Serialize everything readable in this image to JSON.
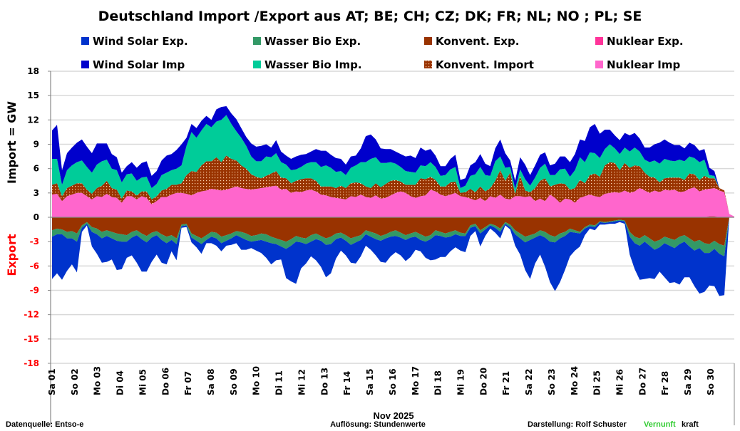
{
  "chart_data": {
    "type": "area",
    "title": "Deutschland  Import /Export  aus AT;  BE;  CH;  CZ;  DK;  FR;  NL;  NO ;  PL;  SE",
    "ylabel_import": "Import   = GW",
    "ylabel_export": "Export",
    "xlabel": "Nov 2025",
    "ylim": [
      -18,
      18
    ],
    "yticks": [
      18,
      15,
      12,
      9,
      6,
      3,
      0,
      -3,
      -6,
      -9,
      -12,
      -15,
      -18
    ],
    "grid": true,
    "legend_position": "top",
    "categories": [
      "Sa 01",
      "So 02",
      "Mo 03",
      "Di 04",
      "Mi 05",
      "Do 06",
      "Fr 07",
      "Sa 08",
      "So 09",
      "Mo 10",
      "Di 11",
      "Mi 12",
      "Do 13",
      "Fr 14",
      "Sa 15",
      "So 16",
      "Mo 17",
      "Di 18",
      "Mi 19",
      "Do 20",
      "Fr 21",
      "Sa 22",
      "So 23",
      "Mo 24",
      "Di 25",
      "Mi 26",
      "Do 27",
      "Fr 28",
      "Sa 29",
      "So 30"
    ],
    "resolution_note": "values sampled every 6 hours (4 per day), GW, stacked layers as thickness",
    "import_series": [
      {
        "name": "Nuklear Imp",
        "color": "#ff66cc",
        "values": [
          2.8,
          2.9,
          2.0,
          2.6,
          2.8,
          3.0,
          3.0,
          2.6,
          2.2,
          2.6,
          2.5,
          2.9,
          2.5,
          2.4,
          1.8,
          2.6,
          2.6,
          2.2,
          2.6,
          2.4,
          1.6,
          2.0,
          2.5,
          2.5,
          2.8,
          3.0,
          3.0,
          2.9,
          2.7,
          3.0,
          3.2,
          3.3,
          3.5,
          3.4,
          3.3,
          3.4,
          3.6,
          3.8,
          3.6,
          3.5,
          3.4,
          3.5,
          3.6,
          3.7,
          3.8,
          3.9,
          3.4,
          3.5,
          3.0,
          3.2,
          3.1,
          3.3,
          3.4,
          3.2,
          2.8,
          2.7,
          2.5,
          2.4,
          2.3,
          2.2,
          2.6,
          2.5,
          2.8,
          2.5,
          2.4,
          2.7,
          2.3,
          2.4,
          2.7,
          3.0,
          3.2,
          3.0,
          2.6,
          2.4,
          2.6,
          2.7,
          3.4,
          3.2,
          2.8,
          2.6,
          2.8,
          3.0,
          2.6,
          2.5,
          2.3,
          2.1,
          2.4,
          2.0,
          2.6,
          2.4,
          2.8,
          2.3,
          2.2,
          2.6,
          2.6,
          2.5,
          2.6,
          2.0,
          2.3,
          2.0,
          2.8,
          2.4,
          1.8,
          2.3,
          2.2,
          1.8,
          2.4,
          2.6,
          2.8,
          2.6,
          2.5,
          2.9,
          3.0,
          3.1,
          3.0,
          3.3,
          3.0,
          3.2,
          3.6,
          3.3,
          3.0,
          3.3,
          3.1,
          3.4,
          3.3,
          3.4,
          3.1,
          3.2,
          3.5,
          3.7,
          3.2,
          3.4,
          3.5,
          3.6,
          3.3,
          3.1,
          0.4,
          0.1
        ]
      },
      {
        "name": "Konvent. Import",
        "color": "#993300",
        "pattern": "dotted",
        "values": [
          1.2,
          1.3,
          0.6,
          1.0,
          1.1,
          1.2,
          1.2,
          0.8,
          0.7,
          1.0,
          1.4,
          1.6,
          1.1,
          1.0,
          0.5,
          0.7,
          0.6,
          0.5,
          0.6,
          0.8,
          0.6,
          0.6,
          0.8,
          1.0,
          1.2,
          1.0,
          1.2,
          2.3,
          3.0,
          2.6,
          3.2,
          3.6,
          3.4,
          4.0,
          3.5,
          4.2,
          3.6,
          3.2,
          2.8,
          2.5,
          1.9,
          1.5,
          1.2,
          1.4,
          1.6,
          1.8,
          1.5,
          1.3,
          1.2,
          1.3,
          1.6,
          1.5,
          1.4,
          1.3,
          1.0,
          1.1,
          1.3,
          1.2,
          1.6,
          1.4,
          1.6,
          1.8,
          1.4,
          1.3,
          1.2,
          1.5,
          1.4,
          1.7,
          1.8,
          1.6,
          1.2,
          1.0,
          1.4,
          1.6,
          2.2,
          2.0,
          1.6,
          1.4,
          1.0,
          1.2,
          1.5,
          1.4,
          0.4,
          0.6,
          1.2,
          1.0,
          1.4,
          1.2,
          1.0,
          2.1,
          3.0,
          2.2,
          3.3,
          0.3,
          2.5,
          0.8,
          0.5,
          1.6,
          2.2,
          2.8,
          1.0,
          1.6,
          2.4,
          1.8,
          1.2,
          1.8,
          2.2,
          1.6,
          2.4,
          2.8,
          2.5,
          3.5,
          3.8,
          3.6,
          2.8,
          3.4,
          3.1,
          3.2,
          2.7,
          2.2,
          2.0,
          1.6,
          1.2,
          1.4,
          1.6,
          1.5,
          1.8,
          1.4,
          1.9,
          1.6,
          1.4,
          1.7,
          1.3,
          1.2,
          0.3,
          0.2
        ]
      },
      {
        "name": "Wasser Bio Imp.",
        "color": "#00cc99",
        "values": [
          3.2,
          3.0,
          1.4,
          2.2,
          2.5,
          2.6,
          2.8,
          2.8,
          2.6,
          2.9,
          3.0,
          2.6,
          2.4,
          2.4,
          2.0,
          2.0,
          2.2,
          1.8,
          1.7,
          1.8,
          1.4,
          1.5,
          1.9,
          2.0,
          1.8,
          2.0,
          2.2,
          3.6,
          4.8,
          4.2,
          4.3,
          4.6,
          4.2,
          4.4,
          5.2,
          5.0,
          4.3,
          3.6,
          3.4,
          2.8,
          2.2,
          1.9,
          2.1,
          2.4,
          2.0,
          2.2,
          1.9,
          1.7,
          1.6,
          1.4,
          1.5,
          1.8,
          2.0,
          2.3,
          2.4,
          2.6,
          2.3,
          2.0,
          1.8,
          1.6,
          1.9,
          2.1,
          2.6,
          3.0,
          3.6,
          3.2,
          3.0,
          2.6,
          2.3,
          2.0,
          1.8,
          1.7,
          1.6,
          1.5,
          1.6,
          1.6,
          1.8,
          1.6,
          1.3,
          1.4,
          1.6,
          1.8,
          0.6,
          0.8,
          1.6,
          2.2,
          2.4,
          2.0,
          1.5,
          2.4,
          1.7,
          1.6,
          0.7,
          0.6,
          0.8,
          1.4,
          0.8,
          1.3,
          1.6,
          1.8,
          1.4,
          1.2,
          1.7,
          1.9,
          1.6,
          2.2,
          2.8,
          2.6,
          2.8,
          2.5,
          2.3,
          2.0,
          2.2,
          1.8,
          2.0,
          1.9,
          2.0,
          2.2,
          1.8,
          1.6,
          1.8,
          2.1,
          2.3,
          2.4,
          2.1,
          2.0,
          2.2,
          2.3,
          2.1,
          2.0,
          2.2,
          2.0,
          0.4,
          0.3
        ]
      },
      {
        "name": "Wind Solar Imp",
        "color": "#0000cc",
        "values": [
          3.5,
          4.2,
          1.8,
          2.1,
          2.2,
          2.4,
          2.6,
          2.5,
          2.4,
          2.6,
          2.2,
          2.0,
          1.8,
          1.6,
          1.2,
          1.0,
          1.4,
          1.6,
          1.8,
          1.9,
          1.5,
          1.6,
          1.8,
          2.1,
          2.0,
          2.3,
          2.6,
          1.0,
          1.0,
          1.2,
          1.2,
          1.0,
          0.9,
          1.5,
          1.6,
          1.1,
          1.3,
          1.5,
          1.2,
          1.1,
          1.6,
          1.8,
          1.9,
          1.5,
          1.2,
          1.6,
          1.3,
          1.1,
          1.4,
          1.6,
          1.5,
          1.2,
          1.3,
          1.6,
          2.0,
          1.8,
          1.6,
          1.7,
          1.5,
          1.3,
          1.4,
          1.2,
          1.7,
          3.2,
          3.0,
          2.2,
          1.8,
          1.7,
          1.6,
          1.5,
          1.6,
          1.8,
          2.0,
          1.8,
          2.2,
          1.9,
          1.6,
          1.4,
          1.2,
          1.1,
          1.3,
          1.5,
          1.0,
          0.9,
          1.3,
          1.5,
          1.6,
          1.4,
          1.2,
          1.6,
          2.1,
          1.8,
          0.8,
          1.0,
          1.5,
          1.8,
          1.3,
          1.5,
          1.6,
          1.4,
          1.2,
          1.4,
          1.6,
          1.5,
          1.8,
          2.0,
          2.2,
          2.6,
          3.1,
          3.6,
          3.0,
          2.4,
          1.8,
          1.6,
          1.7,
          1.8,
          2.0,
          1.8,
          1.6,
          1.5,
          1.8,
          2.0,
          2.6,
          2.4,
          2.2,
          2.0,
          1.8,
          1.6,
          1.7,
          1.6,
          1.4,
          1.3,
          0.9,
          0.6
        ]
      }
    ],
    "export_series": [
      {
        "name": "Nuklear Exp.",
        "color": "#ff3399",
        "values": [
          0,
          0,
          0,
          0,
          0,
          0,
          0,
          0,
          0,
          0,
          0,
          0,
          0,
          0,
          0,
          0,
          0,
          0,
          0,
          0,
          0,
          0,
          0,
          0,
          0,
          0,
          0,
          0,
          0,
          0,
          0,
          0,
          0,
          0,
          0,
          0,
          0,
          0,
          0,
          0,
          0,
          0,
          0,
          0,
          0,
          0,
          0,
          0,
          0,
          0,
          0,
          0,
          0,
          0,
          0,
          0,
          0,
          0,
          0,
          0,
          0,
          0,
          0,
          0,
          0,
          0,
          0,
          0,
          0,
          0,
          0,
          0,
          0,
          0,
          0,
          0,
          0,
          0,
          0,
          0,
          0,
          0,
          0,
          0,
          0,
          0,
          0,
          0,
          0,
          0,
          0,
          0,
          0,
          0,
          0,
          0,
          0,
          0,
          0,
          0,
          0,
          0,
          0,
          0,
          0,
          0,
          0,
          0,
          0,
          0,
          0,
          0,
          0,
          0,
          0,
          0,
          0,
          0,
          0,
          0,
          0,
          0,
          0,
          0,
          0,
          0,
          0,
          0,
          0,
          0,
          0,
          0,
          0.1,
          0.1
        ]
      },
      {
        "name": "Konvent. Exp.",
        "color": "#993300",
        "values": [
          -1.6,
          -1.4,
          -1.5,
          -1.8,
          -1.7,
          -2.0,
          -1.0,
          -0.6,
          -1.2,
          -1.4,
          -1.8,
          -1.6,
          -1.8,
          -2.0,
          -2.1,
          -2.2,
          -1.8,
          -1.6,
          -2.0,
          -2.3,
          -1.9,
          -1.7,
          -2.1,
          -2.4,
          -2.2,
          -2.6,
          -0.9,
          -0.8,
          -2.0,
          -2.3,
          -2.6,
          -2.2,
          -1.8,
          -1.9,
          -2.4,
          -2.2,
          -2.0,
          -1.7,
          -1.8,
          -2.0,
          -2.3,
          -2.2,
          -2.0,
          -2.1,
          -2.4,
          -2.6,
          -2.8,
          -3.0,
          -2.7,
          -2.3,
          -2.5,
          -2.6,
          -2.2,
          -2.0,
          -2.3,
          -2.6,
          -2.4,
          -2.0,
          -1.9,
          -2.2,
          -2.6,
          -2.4,
          -2.2,
          -1.6,
          -1.8,
          -2.0,
          -2.3,
          -2.1,
          -1.8,
          -1.6,
          -1.9,
          -2.2,
          -2.0,
          -1.8,
          -2.1,
          -2.4,
          -2.2,
          -1.6,
          -1.8,
          -2.0,
          -1.8,
          -1.6,
          -1.9,
          -2.0,
          -1.0,
          -0.8,
          -1.6,
          -1.2,
          -0.8,
          -1.0,
          -1.4,
          -0.6,
          -0.9,
          -1.6,
          -2.0,
          -2.4,
          -2.2,
          -2.0,
          -1.6,
          -1.8,
          -2.2,
          -2.4,
          -2.0,
          -1.8,
          -1.4,
          -1.6,
          -1.8,
          -1.2,
          -0.9,
          -1.0,
          -0.5,
          -0.6,
          -0.5,
          -0.4,
          -0.3,
          -0.4,
          -1.8,
          -2.4,
          -2.6,
          -2.2,
          -2.6,
          -3.0,
          -2.8,
          -2.4,
          -2.6,
          -2.8,
          -2.4,
          -2.2,
          -2.6,
          -3.0,
          -2.8,
          -3.2,
          -3.4,
          -3.0,
          -3.3,
          -3.5
        ]
      },
      {
        "name": "Wasser Bio Exp.",
        "color": "#339966",
        "values": [
          -0.8,
          -0.7,
          -0.6,
          -0.8,
          -0.9,
          -1.0,
          -0.3,
          -0.2,
          -0.6,
          -0.7,
          -0.8,
          -0.7,
          -0.8,
          -0.9,
          -0.9,
          -0.8,
          -0.7,
          -0.6,
          -0.7,
          -0.8,
          -0.6,
          -0.5,
          -0.7,
          -0.8,
          -0.6,
          -0.7,
          -0.2,
          -0.2,
          -0.5,
          -0.6,
          -0.7,
          -0.6,
          -0.6,
          -0.7,
          -0.8,
          -0.7,
          -0.6,
          -0.5,
          -0.7,
          -0.8,
          -0.7,
          -0.7,
          -0.8,
          -0.9,
          -0.8,
          -0.7,
          -0.8,
          -0.9,
          -0.8,
          -0.7,
          -0.6,
          -0.7,
          -0.8,
          -0.7,
          -0.6,
          -0.8,
          -0.9,
          -0.7,
          -0.6,
          -0.7,
          -0.8,
          -0.7,
          -0.6,
          -0.5,
          -0.6,
          -0.7,
          -0.6,
          -0.5,
          -0.6,
          -0.7,
          -0.6,
          -0.6,
          -0.5,
          -0.6,
          -0.7,
          -0.6,
          -0.5,
          -0.6,
          -0.5,
          -0.5,
          -0.6,
          -0.5,
          -0.4,
          -0.3,
          -0.3,
          -0.3,
          -0.4,
          -0.3,
          -0.2,
          -0.3,
          -0.4,
          -0.2,
          -0.3,
          -0.5,
          -0.6,
          -0.7,
          -0.6,
          -0.5,
          -0.6,
          -0.7,
          -0.8,
          -0.7,
          -0.6,
          -0.5,
          -0.4,
          -0.3,
          -0.2,
          -0.2,
          -0.2,
          -0.2,
          -0.1,
          -0.1,
          -0.1,
          -0.1,
          -0.1,
          -0.1,
          -0.6,
          -0.8,
          -0.9,
          -0.8,
          -0.9,
          -1.0,
          -0.9,
          -0.8,
          -0.9,
          -1.0,
          -0.9,
          -0.8,
          -1.0,
          -1.1,
          -1.0,
          -1.2,
          -1.1,
          -1.0,
          -1.2,
          -1.3
        ]
      },
      {
        "name": "Wind Solar Exp.",
        "color": "#0033cc",
        "values": [
          -5.2,
          -4.8,
          -5.6,
          -4.0,
          -3.2,
          -3.8,
          -0.5,
          -0.2,
          -1.8,
          -2.4,
          -3.0,
          -3.2,
          -2.6,
          -3.6,
          -3.4,
          -2.0,
          -2.2,
          -3.4,
          -4.0,
          -3.6,
          -3.0,
          -2.4,
          -2.8,
          -2.6,
          -1.4,
          -2.0,
          -0.2,
          -0.2,
          -0.6,
          -0.8,
          -1.2,
          -0.4,
          -0.8,
          -0.9,
          -1.0,
          -0.6,
          -0.8,
          -1.0,
          -1.5,
          -1.2,
          -0.8,
          -1.2,
          -1.6,
          -2.0,
          -2.6,
          -2.0,
          -1.6,
          -3.6,
          -4.4,
          -5.2,
          -3.2,
          -2.4,
          -1.8,
          -2.6,
          -3.2,
          -4.0,
          -3.6,
          -2.4,
          -1.6,
          -1.8,
          -2.2,
          -2.6,
          -2.0,
          -1.4,
          -1.6,
          -2.0,
          -2.6,
          -3.0,
          -2.4,
          -2.0,
          -2.2,
          -2.6,
          -2.4,
          -1.6,
          -1.4,
          -2.0,
          -2.6,
          -3.0,
          -2.6,
          -2.4,
          -1.8,
          -1.6,
          -1.8,
          -2.0,
          -1.0,
          -0.6,
          -1.6,
          -0.8,
          -0.4,
          -0.6,
          -0.8,
          -0.2,
          -0.3,
          -1.4,
          -2.0,
          -3.4,
          -4.8,
          -3.2,
          -2.4,
          -3.6,
          -5.0,
          -6.0,
          -5.4,
          -4.2,
          -3.0,
          -2.2,
          -1.6,
          -0.8,
          -0.3,
          -0.4,
          -0.3,
          -0.2,
          -0.2,
          -0.3,
          -0.2,
          -0.3,
          -2.2,
          -3.2,
          -4.2,
          -4.6,
          -4.0,
          -3.6,
          -3.0,
          -4.2,
          -4.6,
          -4.2,
          -5.0,
          -4.4,
          -3.8,
          -4.4,
          -5.6,
          -4.8,
          -4.0,
          -4.6,
          -5.2,
          -4.8
        ]
      }
    ]
  },
  "legend": [
    {
      "label": "Wind Solar Exp.",
      "color": "#0033cc"
    },
    {
      "label": "Wasser Bio Exp.",
      "color": "#339966"
    },
    {
      "label": "Konvent. Exp.",
      "color": "#993300"
    },
    {
      "label": "Nuklear Exp.",
      "color": "#ff3399"
    },
    {
      "label": "Wind Solar Imp",
      "color": "#0000cc"
    },
    {
      "label": "Wasser Bio Imp.",
      "color": "#00cc99"
    },
    {
      "label": "Konvent. Import",
      "color": "#993300",
      "pattern": "dotted"
    },
    {
      "label": "Nuklear Imp",
      "color": "#ff66cc"
    }
  ],
  "footer": {
    "source": "Datenquelle: Entso-e",
    "resolution": "Auflösung: Stundenwerte",
    "credit_prefix": "Darstellung:  Rolf Schuster",
    "brand_green": "Vernunft",
    "brand_rest": "kraft"
  },
  "colors": {
    "positive_tick": "#000000",
    "negative_tick": "#ff0000",
    "brand_green": "#33cc33",
    "grid": "#d9d9d9"
  }
}
